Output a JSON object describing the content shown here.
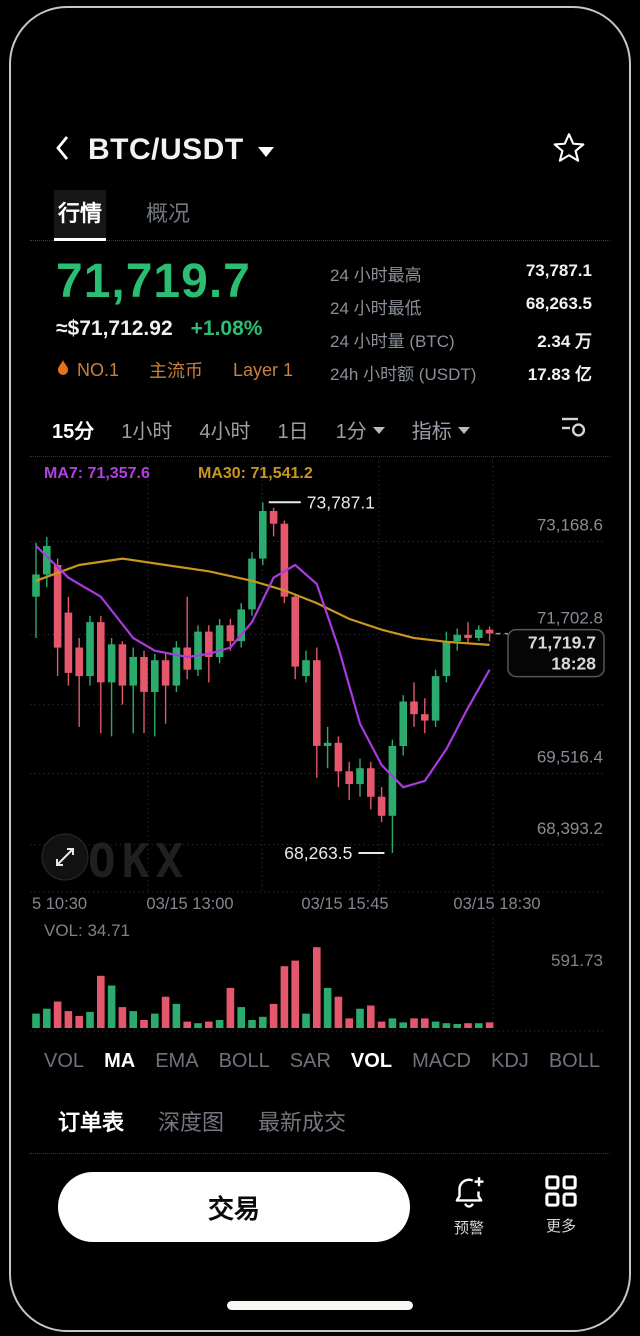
{
  "header": {
    "title": "BTC/USDT"
  },
  "tabs": [
    {
      "label": "行情",
      "active": true
    },
    {
      "label": "概况",
      "active": false
    }
  ],
  "price": {
    "last": "71,719.7",
    "fiat": "≈$71,712.92",
    "change": "+1.08%"
  },
  "tags": [
    {
      "label": "NO.1",
      "icon": "flame"
    },
    {
      "label": "主流币"
    },
    {
      "label": "Layer 1"
    }
  ],
  "stats": [
    {
      "label": "24 小时最高",
      "value": "73,787.1"
    },
    {
      "label": "24 小时最低",
      "value": "68,263.5"
    },
    {
      "label": "24 小时量 (BTC)",
      "value": "2.34 万"
    },
    {
      "label": "24h 小时额 (USDT)",
      "value": "17.83 亿"
    }
  ],
  "toolbar": {
    "timeframes": [
      {
        "label": "15分",
        "active": true
      },
      {
        "label": "1小时",
        "active": false
      },
      {
        "label": "4小时",
        "active": false
      },
      {
        "label": "1日",
        "active": false
      },
      {
        "label": "1分",
        "active": false,
        "dropdown": true
      },
      {
        "label": "指标",
        "active": false,
        "dropdown": true
      }
    ]
  },
  "watermark": "OKX",
  "chart_data": {
    "type": "candlestick",
    "selected_interval": "15分",
    "price_axis": {
      "min": 67650,
      "max": 74500
    },
    "y_axis": [
      {
        "text": "73,168.6",
        "price": 73168.6
      },
      {
        "text": "71,702.8",
        "price": 71702.8
      },
      {
        "text": "",
        "price": 70600
      },
      {
        "text": "69,516.4",
        "price": 69516.4
      },
      {
        "text": "68,393.2",
        "price": 68393.2
      }
    ],
    "x_axis_labels": [
      "5 10:30",
      "03/15 13:00",
      "03/15 15:45",
      "03/15 18:30"
    ],
    "ma7": {
      "label": "MA7: 71,357.6",
      "points": [
        [
          0,
          73100
        ],
        [
          3,
          72600
        ],
        [
          6,
          72300
        ],
        [
          9,
          71650
        ],
        [
          11,
          71450
        ],
        [
          14,
          71350
        ],
        [
          16,
          71400
        ],
        [
          18,
          71500
        ],
        [
          20,
          71900
        ],
        [
          22,
          72600
        ],
        [
          24,
          72800
        ],
        [
          26,
          72500
        ],
        [
          28,
          71500
        ],
        [
          30,
          70300
        ],
        [
          32,
          69650
        ],
        [
          34,
          69300
        ],
        [
          36,
          69400
        ],
        [
          38,
          69900
        ],
        [
          40,
          70550
        ],
        [
          42,
          71150
        ]
      ]
    },
    "ma30": {
      "label": "MA30: 71,541.2",
      "points": [
        [
          0,
          72550
        ],
        [
          4,
          72800
        ],
        [
          8,
          72900
        ],
        [
          12,
          72800
        ],
        [
          16,
          72700
        ],
        [
          20,
          72550
        ],
        [
          23,
          72400
        ],
        [
          26,
          72200
        ],
        [
          29,
          71950
        ],
        [
          32,
          71780
        ],
        [
          35,
          71650
        ],
        [
          38,
          71590
        ],
        [
          42,
          71541
        ]
      ]
    },
    "candles": [
      [
        72300,
        73150,
        71650,
        72650,
        90
      ],
      [
        72650,
        73240,
        72450,
        73100,
        120
      ],
      [
        72800,
        72900,
        71050,
        71500,
        165
      ],
      [
        72050,
        72300,
        70900,
        71100,
        105
      ],
      [
        71500,
        71650,
        70250,
        71050,
        75
      ],
      [
        71050,
        72000,
        70900,
        71900,
        100
      ],
      [
        71900,
        72000,
        70150,
        70950,
        325
      ],
      [
        70950,
        71650,
        70100,
        71550,
        265
      ],
      [
        71550,
        71600,
        70600,
        70900,
        130
      ],
      [
        70900,
        71500,
        70150,
        71350,
        105
      ],
      [
        71350,
        71450,
        70150,
        70800,
        50
      ],
      [
        70800,
        71400,
        70100,
        71300,
        90
      ],
      [
        71300,
        71400,
        70300,
        70900,
        195
      ],
      [
        70900,
        71600,
        70800,
        71500,
        150
      ],
      [
        71500,
        72300,
        71000,
        71150,
        40
      ],
      [
        71150,
        71850,
        71050,
        71750,
        30
      ],
      [
        71750,
        71850,
        70950,
        71350,
        40
      ],
      [
        71350,
        71950,
        71250,
        71850,
        50
      ],
      [
        71850,
        71950,
        71450,
        71600,
        250
      ],
      [
        71600,
        72200,
        71500,
        72100,
        130
      ],
      [
        72100,
        73000,
        72000,
        72900,
        50
      ],
      [
        72900,
        73787.1,
        72800,
        73650,
        70
      ],
      [
        73650,
        73700,
        73250,
        73450,
        150
      ],
      [
        73450,
        73500,
        72200,
        72300,
        385
      ],
      [
        72300,
        72350,
        71000,
        71200,
        420
      ],
      [
        71050,
        71450,
        70950,
        71300,
        90
      ],
      [
        71300,
        71500,
        69450,
        69950,
        503
      ],
      [
        69950,
        70250,
        69600,
        70000,
        250
      ],
      [
        70000,
        70100,
        69300,
        69550,
        195
      ],
      [
        69550,
        69700,
        69100,
        69350,
        60
      ],
      [
        69350,
        69750,
        69150,
        69600,
        120
      ],
      [
        69600,
        69700,
        68950,
        69150,
        140
      ],
      [
        69150,
        69300,
        68750,
        68850,
        40
      ],
      [
        68850,
        70050,
        68263.5,
        69950,
        60
      ],
      [
        69950,
        70750,
        69800,
        70650,
        35
      ],
      [
        70650,
        70950,
        70250,
        70450,
        60
      ],
      [
        70450,
        70700,
        70150,
        70350,
        60
      ],
      [
        70350,
        71150,
        70250,
        71050,
        40
      ],
      [
        71050,
        71750,
        70950,
        71600,
        30
      ],
      [
        71600,
        71800,
        71450,
        71700,
        25
      ],
      [
        71700,
        71900,
        71550,
        71650,
        30
      ],
      [
        71650,
        71850,
        71600,
        71780,
        30
      ],
      [
        71780,
        71830,
        71600,
        71719.7,
        34.71
      ]
    ],
    "annotations": {
      "high_text": "73,787.1",
      "high_price": 73787.1,
      "high_candle": 21,
      "low_text": "68,263.5",
      "low_price": 68263.5,
      "low_candle": 33,
      "last_price_text": "71,719.7",
      "last_time": "18:28",
      "last_price": 71719.7
    },
    "volume_pane": {
      "current_label": "VOL: 34.71",
      "max_label": "591.73",
      "max": 591.73
    }
  },
  "indicator_tabs": [
    {
      "label": "VOL",
      "active": false
    },
    {
      "label": "MA",
      "active": true
    },
    {
      "label": "EMA",
      "active": false
    },
    {
      "label": "BOLL",
      "active": false
    },
    {
      "label": "SAR",
      "active": false
    },
    {
      "label": "VOL",
      "active": true
    },
    {
      "label": "MACD",
      "active": false
    },
    {
      "label": "KDJ",
      "active": false
    },
    {
      "label": "BOLL",
      "active": false
    }
  ],
  "bottom_tabs": [
    {
      "label": "订单表",
      "active": true
    },
    {
      "label": "深度图",
      "active": false
    },
    {
      "label": "最新成交",
      "active": false
    }
  ],
  "trade": {
    "button": "交易",
    "alert_label": "预警",
    "more_label": "更多"
  },
  "colors": {
    "up": "#2cab6e",
    "down": "#e4576c",
    "price_up_text": "#2cbd74",
    "ma7": "#a83ae0",
    "ma7_label": "#b340e0",
    "ma30": "#c9961e",
    "tag_orange": "#c8803a",
    "flame_orange": "#e8711c",
    "axis_grey": "#888c94",
    "inactive_grey": "#73777f"
  }
}
